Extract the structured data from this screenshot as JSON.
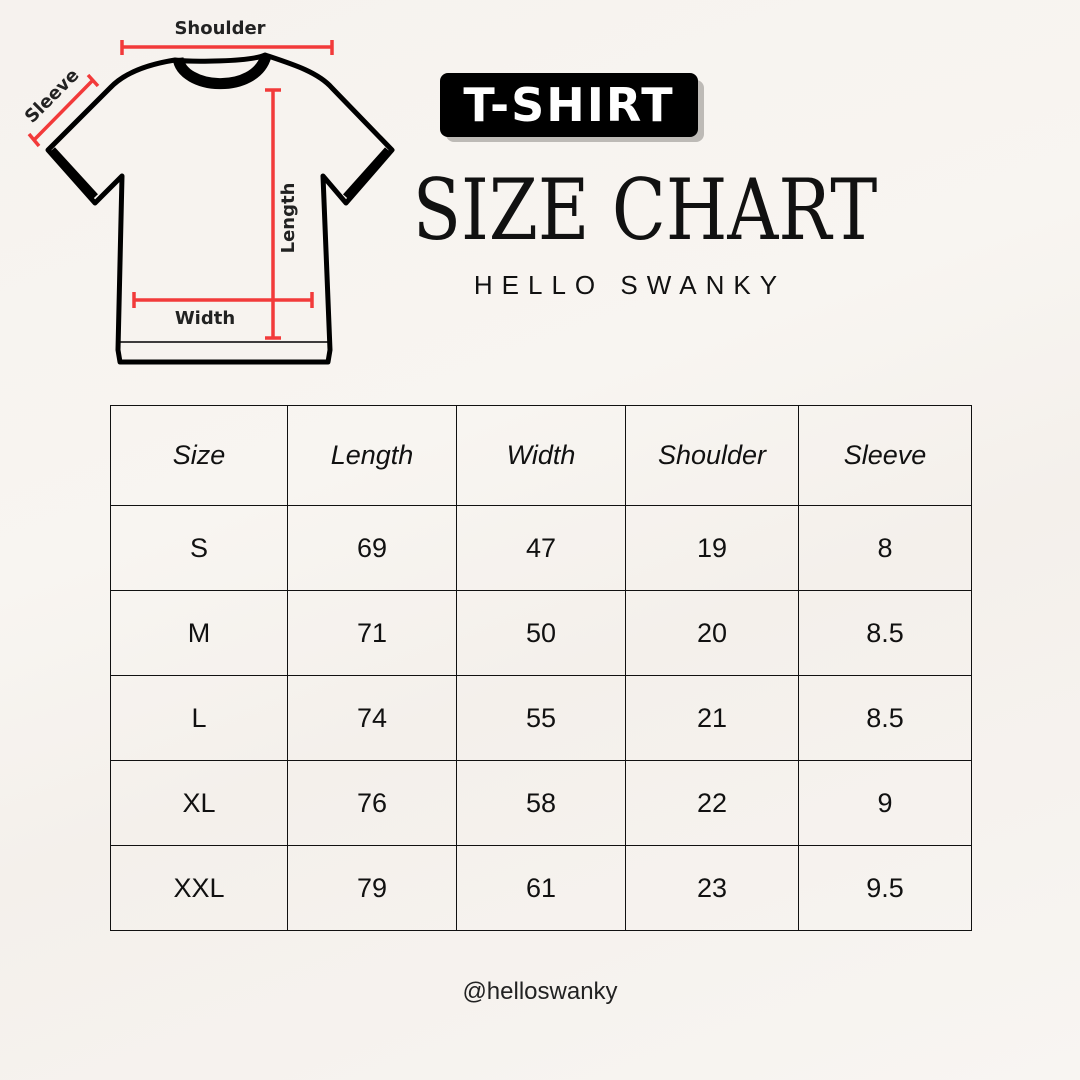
{
  "badge": "T-SHIRT",
  "title": "SIZE CHART",
  "brand": "HELLO SWANKY",
  "handle": "@helloswanky",
  "diagram": {
    "shoulder": "Shoulder",
    "sleeve": "Sleeve",
    "length": "Length",
    "width": "Width",
    "accent": "#f23a3a"
  },
  "table": {
    "headers": [
      "Size",
      "Length",
      "Width",
      "Shoulder",
      "Sleeve"
    ],
    "rows": [
      [
        "S",
        "69",
        "47",
        "19",
        "8"
      ],
      [
        "M",
        "71",
        "50",
        "20",
        "8.5"
      ],
      [
        "L",
        "74",
        "55",
        "21",
        "8.5"
      ],
      [
        "XL",
        "76",
        "58",
        "22",
        "9"
      ],
      [
        "XXL",
        "79",
        "61",
        "23",
        "9.5"
      ]
    ]
  }
}
